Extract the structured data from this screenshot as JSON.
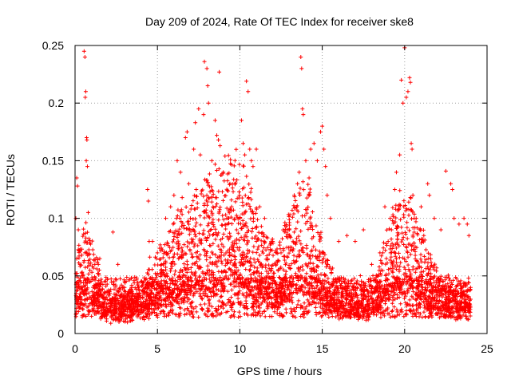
{
  "chart_data": {
    "type": "scatter",
    "title": "Day 209 of 2024, Rate Of TEC Index for receiver ske8",
    "xlabel": "GPS time / hours",
    "ylabel": "ROTI / TECUs",
    "xlim": [
      0,
      25
    ],
    "ylim": [
      0,
      0.25
    ],
    "x_ticks": [
      0,
      5,
      10,
      15,
      20,
      25
    ],
    "y_ticks": [
      0,
      0.05,
      0.1,
      0.15,
      0.2,
      0.25
    ],
    "x_tick_labels": [
      "0",
      "5",
      "10",
      "15",
      "20",
      "25"
    ],
    "y_tick_labels": [
      "0",
      "0.05",
      "0.1",
      "0.15",
      "0.2",
      "0.25"
    ],
    "grid": true,
    "marker": "+",
    "color": "#ff0000",
    "series": [
      {
        "name": "ROTI",
        "points": [
          [
            0.05,
            0.1
          ],
          [
            0.1,
            0.135
          ],
          [
            0.15,
            0.128
          ],
          [
            0.2,
            0.09
          ],
          [
            0.3,
            0.06
          ],
          [
            0.4,
            0.05
          ],
          [
            0.55,
            0.245
          ],
          [
            0.6,
            0.24
          ],
          [
            0.62,
            0.205
          ],
          [
            0.65,
            0.21
          ],
          [
            0.7,
            0.17
          ],
          [
            0.72,
            0.168
          ],
          [
            0.68,
            0.15
          ],
          [
            0.75,
            0.145
          ],
          [
            0.8,
            0.105
          ],
          [
            0.6,
            0.07
          ],
          [
            0.9,
            0.055
          ],
          [
            1.2,
            0.06
          ],
          [
            1.5,
            0.065
          ],
          [
            1.8,
            0.045
          ],
          [
            2.3,
            0.088
          ],
          [
            2.6,
            0.06
          ],
          [
            3.0,
            0.04
          ],
          [
            3.5,
            0.035
          ],
          [
            4.0,
            0.045
          ],
          [
            4.4,
            0.125
          ],
          [
            4.45,
            0.115
          ],
          [
            4.5,
            0.08
          ],
          [
            4.7,
            0.08
          ],
          [
            5.0,
            0.07
          ],
          [
            5.5,
            0.1
          ],
          [
            5.8,
            0.11
          ],
          [
            6.0,
            0.12
          ],
          [
            6.2,
            0.15
          ],
          [
            6.4,
            0.14
          ],
          [
            6.5,
            0.118
          ],
          [
            6.7,
            0.17
          ],
          [
            6.8,
            0.175
          ],
          [
            6.9,
            0.13
          ],
          [
            7.0,
            0.1
          ],
          [
            7.2,
            0.16
          ],
          [
            7.3,
            0.183
          ],
          [
            7.5,
            0.195
          ],
          [
            7.6,
            0.155
          ],
          [
            7.8,
            0.19
          ],
          [
            7.85,
            0.236
          ],
          [
            8.0,
            0.23
          ],
          [
            8.05,
            0.215
          ],
          [
            8.1,
            0.2
          ],
          [
            8.3,
            0.15
          ],
          [
            8.5,
            0.185
          ],
          [
            8.6,
            0.172
          ],
          [
            8.7,
            0.168
          ],
          [
            8.75,
            0.227
          ],
          [
            8.8,
            0.163
          ],
          [
            9.0,
            0.14
          ],
          [
            9.2,
            0.1
          ],
          [
            9.4,
            0.13
          ],
          [
            9.5,
            0.11
          ],
          [
            9.8,
            0.09
          ],
          [
            10.0,
            0.1
          ],
          [
            10.1,
            0.185
          ],
          [
            10.2,
            0.165
          ],
          [
            10.3,
            0.155
          ],
          [
            10.4,
            0.219
          ],
          [
            10.5,
            0.21
          ],
          [
            10.6,
            0.16
          ],
          [
            10.7,
            0.15
          ],
          [
            10.8,
            0.145
          ],
          [
            11.0,
            0.16
          ],
          [
            11.2,
            0.11
          ],
          [
            11.5,
            0.1
          ],
          [
            12.0,
            0.08
          ],
          [
            12.5,
            0.07
          ],
          [
            13.0,
            0.09
          ],
          [
            13.3,
            0.12
          ],
          [
            13.5,
            0.13
          ],
          [
            13.6,
            0.14
          ],
          [
            13.7,
            0.24
          ],
          [
            13.75,
            0.23
          ],
          [
            13.8,
            0.195
          ],
          [
            13.85,
            0.19
          ],
          [
            14.0,
            0.15
          ],
          [
            14.2,
            0.135
          ],
          [
            14.3,
            0.16
          ],
          [
            14.5,
            0.165
          ],
          [
            14.7,
            0.15
          ],
          [
            14.9,
            0.175
          ],
          [
            15.0,
            0.18
          ],
          [
            15.1,
            0.16
          ],
          [
            15.2,
            0.145
          ],
          [
            15.3,
            0.12
          ],
          [
            15.5,
            0.1
          ],
          [
            16.0,
            0.08
          ],
          [
            16.5,
            0.085
          ],
          [
            17.0,
            0.08
          ],
          [
            17.5,
            0.09
          ],
          [
            18.0,
            0.06
          ],
          [
            18.5,
            0.07
          ],
          [
            18.8,
            0.11
          ],
          [
            19.0,
            0.08
          ],
          [
            19.2,
            0.09
          ],
          [
            19.4,
            0.125
          ],
          [
            19.5,
            0.14
          ],
          [
            19.7,
            0.155
          ],
          [
            19.8,
            0.22
          ],
          [
            19.9,
            0.2
          ],
          [
            20.0,
            0.248
          ],
          [
            20.1,
            0.205
          ],
          [
            20.2,
            0.21
          ],
          [
            20.3,
            0.222
          ],
          [
            20.35,
            0.218
          ],
          [
            20.4,
            0.165
          ],
          [
            20.45,
            0.16
          ],
          [
            20.5,
            0.12
          ],
          [
            20.7,
            0.1
          ],
          [
            21.0,
            0.11
          ],
          [
            21.4,
            0.13
          ],
          [
            21.5,
            0.12
          ],
          [
            21.8,
            0.1
          ],
          [
            22.2,
            0.09
          ],
          [
            22.5,
            0.141
          ],
          [
            22.8,
            0.13
          ],
          [
            22.9,
            0.125
          ],
          [
            23.0,
            0.1
          ],
          [
            23.3,
            0.095
          ],
          [
            23.6,
            0.1
          ],
          [
            23.8,
            0.095
          ],
          [
            23.9,
            0.085
          ],
          [
            24.0,
            0.04
          ]
        ]
      }
    ]
  }
}
